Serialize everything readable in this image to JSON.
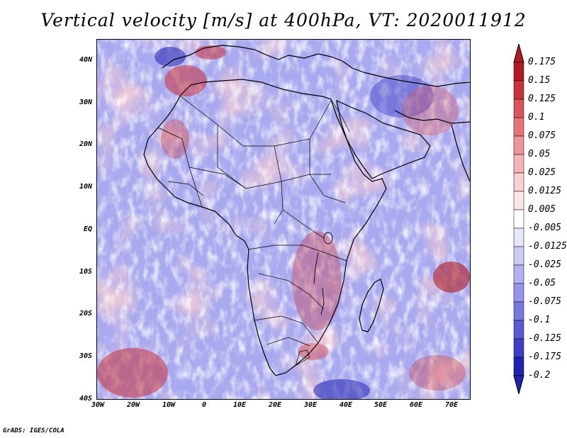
{
  "title": "Vertical velocity [m/s] at 400hPa, VT: 2020011912",
  "credit": "GrADS: IGES/COLA",
  "map": {
    "lat_labels": [
      "40N",
      "30N",
      "20N",
      "10N",
      "EQ",
      "10S",
      "20S",
      "30S",
      "40S"
    ],
    "lon_labels": [
      "30W",
      "20W",
      "10W",
      "0",
      "10E",
      "20E",
      "30E",
      "40E",
      "50E",
      "60E",
      "70E"
    ],
    "lat_range": [
      -40,
      44
    ],
    "lon_range": [
      -30,
      75
    ]
  },
  "colorbar": {
    "labels": [
      "0.175",
      "0.15",
      "0.125",
      "0.1",
      "0.075",
      "0.05",
      "0.025",
      "0.0125",
      "0.005",
      "-0.005",
      "-0.0125",
      "-0.025",
      "-0.05",
      "-0.075",
      "-0.1",
      "-0.125",
      "-0.175",
      "-0.2"
    ],
    "colors": [
      "#b21a22",
      "#c8323a",
      "#d9535a",
      "#e57378",
      "#ee9498",
      "#f4b3b6",
      "#f9cfd1",
      "#fce6e7",
      "#ffffff",
      "#e6e6fc",
      "#ccccf8",
      "#b0b0f2",
      "#9494ea",
      "#7878e0",
      "#5a5ad4",
      "#3e3ec6",
      "#2222b2"
    ]
  }
}
